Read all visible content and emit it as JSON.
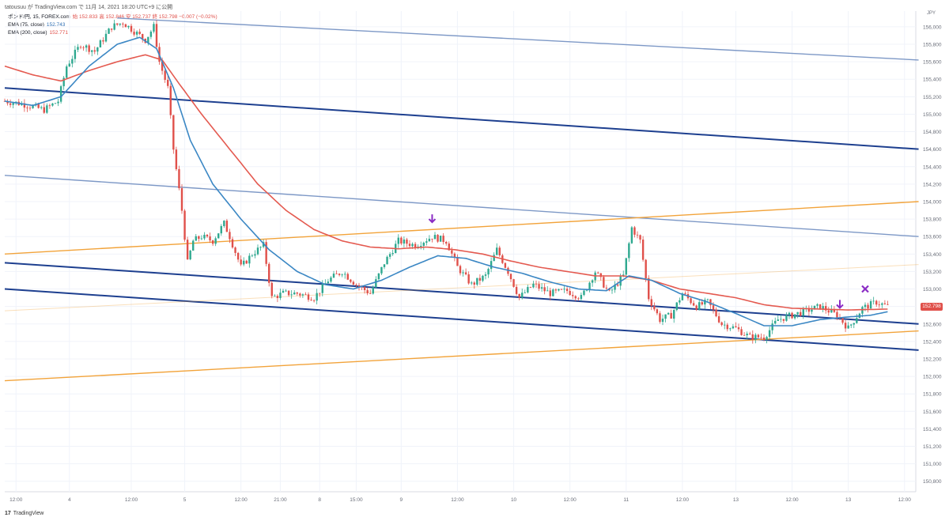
{
  "header": {
    "topline": "tatousuu が TradingView.com で 11月 14, 2021 18:20 UTC+9 に公開",
    "legend": [
      {
        "text": "ポンド/円, 15, FOREX.com",
        "value": "始 152.833 高 152.846 安 152.737 終 152.798 −0.007 (−0.02%)",
        "color": "#e0504a"
      },
      {
        "text": "EMA (75, close)",
        "value": "152.743",
        "color": "#2f6fb3"
      },
      {
        "text": "EMA (200, close)",
        "value": "152.771",
        "color": "#e0504a"
      }
    ]
  },
  "footer": {
    "brand": "TradingView"
  },
  "colors": {
    "up": "#2ea88f",
    "down": "#e0504a",
    "ema75": "#3b87c4",
    "ema200": "#e45a50",
    "channel_dark": "#1d3f8f",
    "channel_light": "#7d98c6",
    "support": "#f2a33a",
    "marker": "#8a2bc4"
  },
  "chart_data": {
    "type": "line",
    "title": "ポンド/円, 15, FOREX.com",
    "currency": "JPY",
    "last_price_label": "152.798",
    "y_ticks": [
      "156,000",
      "155,800",
      "155,600",
      "155,400",
      "155,200",
      "155,000",
      "154,800",
      "154,600",
      "154,400",
      "154,200",
      "154,000",
      "153,800",
      "153,600",
      "153,400",
      "153,200",
      "153,000",
      "152,800",
      "152,600",
      "152,400",
      "152,200",
      "152,000",
      "151,800",
      "151,600",
      "151,400",
      "151,200",
      "151,000",
      "150,800"
    ],
    "ylim": [
      150.68,
      156.18
    ],
    "x_ticks": [
      {
        "label": "12:00",
        "index": 4
      },
      {
        "label": "4",
        "index": 23
      },
      {
        "label": "12:00",
        "index": 45
      },
      {
        "label": "5",
        "index": 64
      },
      {
        "label": "12:00",
        "index": 84
      },
      {
        "label": "21:00",
        "index": 98
      },
      {
        "label": "8",
        "index": 112
      },
      {
        "label": "15:00",
        "index": 125
      },
      {
        "label": "9",
        "index": 141
      },
      {
        "label": "12:00",
        "index": 161
      },
      {
        "label": "10",
        "index": 181
      },
      {
        "label": "12:00",
        "index": 201
      },
      {
        "label": "11",
        "index": 221
      },
      {
        "label": "12:00",
        "index": 241
      },
      {
        "label": "13",
        "index": 260
      },
      {
        "label": "12:00",
        "index": 280
      },
      {
        "label": "13",
        "index": 300
      },
      {
        "label": "12:00",
        "index": 320
      }
    ],
    "x_count": 325,
    "price_series": [
      {
        "index": 0,
        "value": 155.15
      },
      {
        "index": 6,
        "value": 155.12
      },
      {
        "index": 14,
        "value": 155.05
      },
      {
        "index": 19,
        "value": 155.15
      },
      {
        "index": 22,
        "value": 155.55
      },
      {
        "index": 27,
        "value": 155.8
      },
      {
        "index": 32,
        "value": 155.72
      },
      {
        "index": 38,
        "value": 156.0
      },
      {
        "index": 42,
        "value": 156.05
      },
      {
        "index": 46,
        "value": 155.95
      },
      {
        "index": 50,
        "value": 155.85
      },
      {
        "index": 53,
        "value": 156.0
      },
      {
        "index": 55,
        "value": 155.6
      },
      {
        "index": 58,
        "value": 155.3
      },
      {
        "index": 60,
        "value": 154.6
      },
      {
        "index": 63,
        "value": 153.9
      },
      {
        "index": 65,
        "value": 153.3
      },
      {
        "index": 67,
        "value": 153.55
      },
      {
        "index": 70,
        "value": 153.6
      },
      {
        "index": 74,
        "value": 153.55
      },
      {
        "index": 78,
        "value": 153.75
      },
      {
        "index": 80,
        "value": 153.6
      },
      {
        "index": 84,
        "value": 153.25
      },
      {
        "index": 88,
        "value": 153.4
      },
      {
        "index": 92,
        "value": 153.5
      },
      {
        "index": 95,
        "value": 152.9
      },
      {
        "index": 99,
        "value": 152.95
      },
      {
        "index": 104,
        "value": 152.95
      },
      {
        "index": 110,
        "value": 152.9
      },
      {
        "index": 115,
        "value": 153.1
      },
      {
        "index": 120,
        "value": 153.2
      },
      {
        "index": 125,
        "value": 153.05
      },
      {
        "index": 130,
        "value": 152.95
      },
      {
        "index": 135,
        "value": 153.3
      },
      {
        "index": 140,
        "value": 153.55
      },
      {
        "index": 146,
        "value": 153.5
      },
      {
        "index": 152,
        "value": 153.6
      },
      {
        "index": 157,
        "value": 153.55
      },
      {
        "index": 161,
        "value": 153.25
      },
      {
        "index": 166,
        "value": 153.05
      },
      {
        "index": 171,
        "value": 153.15
      },
      {
        "index": 175,
        "value": 153.45
      },
      {
        "index": 179,
        "value": 153.2
      },
      {
        "index": 183,
        "value": 152.9
      },
      {
        "index": 188,
        "value": 153.05
      },
      {
        "index": 194,
        "value": 152.95
      },
      {
        "index": 200,
        "value": 152.98
      },
      {
        "index": 205,
        "value": 152.9
      },
      {
        "index": 210,
        "value": 153.2
      },
      {
        "index": 215,
        "value": 152.95
      },
      {
        "index": 220,
        "value": 153.15
      },
      {
        "index": 223,
        "value": 153.7
      },
      {
        "index": 226,
        "value": 153.55
      },
      {
        "index": 229,
        "value": 152.9
      },
      {
        "index": 233,
        "value": 152.65
      },
      {
        "index": 237,
        "value": 152.7
      },
      {
        "index": 241,
        "value": 152.95
      },
      {
        "index": 246,
        "value": 152.8
      },
      {
        "index": 250,
        "value": 152.85
      },
      {
        "index": 255,
        "value": 152.6
      },
      {
        "index": 260,
        "value": 152.55
      },
      {
        "index": 265,
        "value": 152.45
      },
      {
        "index": 270,
        "value": 152.45
      },
      {
        "index": 275,
        "value": 152.65
      },
      {
        "index": 280,
        "value": 152.7
      },
      {
        "index": 285,
        "value": 152.75
      },
      {
        "index": 290,
        "value": 152.8
      },
      {
        "index": 296,
        "value": 152.7
      },
      {
        "index": 300,
        "value": 152.55
      },
      {
        "index": 305,
        "value": 152.78
      },
      {
        "index": 310,
        "value": 152.85
      },
      {
        "index": 314,
        "value": 152.8
      }
    ],
    "ema75": [
      {
        "index": 0,
        "value": 155.15
      },
      {
        "index": 10,
        "value": 155.1
      },
      {
        "index": 20,
        "value": 155.2
      },
      {
        "index": 30,
        "value": 155.55
      },
      {
        "index": 40,
        "value": 155.8
      },
      {
        "index": 48,
        "value": 155.88
      },
      {
        "index": 54,
        "value": 155.75
      },
      {
        "index": 60,
        "value": 155.3
      },
      {
        "index": 66,
        "value": 154.7
      },
      {
        "index": 74,
        "value": 154.2
      },
      {
        "index": 84,
        "value": 153.8
      },
      {
        "index": 94,
        "value": 153.45
      },
      {
        "index": 104,
        "value": 153.2
      },
      {
        "index": 114,
        "value": 153.05
      },
      {
        "index": 124,
        "value": 153.0
      },
      {
        "index": 134,
        "value": 153.1
      },
      {
        "index": 144,
        "value": 153.25
      },
      {
        "index": 154,
        "value": 153.38
      },
      {
        "index": 164,
        "value": 153.35
      },
      {
        "index": 174,
        "value": 153.25
      },
      {
        "index": 184,
        "value": 153.18
      },
      {
        "index": 194,
        "value": 153.08
      },
      {
        "index": 204,
        "value": 153.0
      },
      {
        "index": 214,
        "value": 152.98
      },
      {
        "index": 222,
        "value": 153.15
      },
      {
        "index": 230,
        "value": 153.1
      },
      {
        "index": 240,
        "value": 152.95
      },
      {
        "index": 250,
        "value": 152.85
      },
      {
        "index": 260,
        "value": 152.72
      },
      {
        "index": 270,
        "value": 152.58
      },
      {
        "index": 280,
        "value": 152.58
      },
      {
        "index": 290,
        "value": 152.65
      },
      {
        "index": 300,
        "value": 152.68
      },
      {
        "index": 308,
        "value": 152.7
      },
      {
        "index": 314,
        "value": 152.74
      }
    ],
    "ema200": [
      {
        "index": 0,
        "value": 155.55
      },
      {
        "index": 10,
        "value": 155.45
      },
      {
        "index": 20,
        "value": 155.38
      },
      {
        "index": 30,
        "value": 155.5
      },
      {
        "index": 40,
        "value": 155.6
      },
      {
        "index": 50,
        "value": 155.68
      },
      {
        "index": 56,
        "value": 155.62
      },
      {
        "index": 62,
        "value": 155.35
      },
      {
        "index": 70,
        "value": 155.0
      },
      {
        "index": 80,
        "value": 154.6
      },
      {
        "index": 90,
        "value": 154.2
      },
      {
        "index": 100,
        "value": 153.9
      },
      {
        "index": 110,
        "value": 153.68
      },
      {
        "index": 120,
        "value": 153.55
      },
      {
        "index": 130,
        "value": 153.48
      },
      {
        "index": 140,
        "value": 153.46
      },
      {
        "index": 150,
        "value": 153.48
      },
      {
        "index": 160,
        "value": 153.45
      },
      {
        "index": 170,
        "value": 153.4
      },
      {
        "index": 180,
        "value": 153.32
      },
      {
        "index": 190,
        "value": 153.25
      },
      {
        "index": 200,
        "value": 153.2
      },
      {
        "index": 210,
        "value": 153.15
      },
      {
        "index": 220,
        "value": 153.15
      },
      {
        "index": 230,
        "value": 153.1
      },
      {
        "index": 240,
        "value": 153.0
      },
      {
        "index": 250,
        "value": 152.95
      },
      {
        "index": 260,
        "value": 152.9
      },
      {
        "index": 270,
        "value": 152.82
      },
      {
        "index": 280,
        "value": 152.78
      },
      {
        "index": 290,
        "value": 152.77
      },
      {
        "index": 300,
        "value": 152.76
      },
      {
        "index": 314,
        "value": 152.77
      }
    ],
    "trend_lines": [
      {
        "kind": "dark",
        "from": {
          "index": 0,
          "value": 155.3
        },
        "to": {
          "index": 325,
          "value": 154.6
        }
      },
      {
        "kind": "dark",
        "from": {
          "index": 0,
          "value": 153.3
        },
        "to": {
          "index": 325,
          "value": 152.6
        }
      },
      {
        "kind": "dark",
        "from": {
          "index": 0,
          "value": 153.0
        },
        "to": {
          "index": 325,
          "value": 152.3
        }
      },
      {
        "kind": "light",
        "from": {
          "index": 40,
          "value": 156.1
        },
        "to": {
          "index": 325,
          "value": 155.62
        }
      },
      {
        "kind": "light",
        "from": {
          "index": 0,
          "value": 154.3
        },
        "to": {
          "index": 325,
          "value": 153.6
        }
      },
      {
        "kind": "support",
        "from": {
          "index": 0,
          "value": 153.4
        },
        "to": {
          "index": 325,
          "value": 154.0
        }
      },
      {
        "kind": "support",
        "from": {
          "index": 0,
          "value": 151.95
        },
        "to": {
          "index": 325,
          "value": 152.52
        }
      },
      {
        "kind": "support_faint",
        "from": {
          "index": 0,
          "value": 152.75
        },
        "to": {
          "index": 325,
          "value": 153.28
        }
      }
    ],
    "markers": [
      {
        "type": "arrow-down",
        "index": 152,
        "value": 153.8
      },
      {
        "type": "arrow-down",
        "index": 297,
        "value": 152.82
      },
      {
        "type": "cross",
        "index": 306,
        "value": 153.0
      }
    ],
    "grid": true,
    "legend": "top-left"
  }
}
